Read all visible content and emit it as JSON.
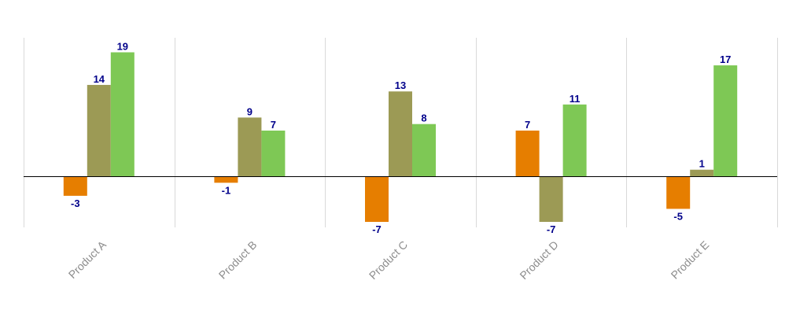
{
  "chart_data": {
    "type": "bar",
    "categories": [
      "Product A",
      "Product B",
      "Product C",
      "Product D",
      "Product E"
    ],
    "series": [
      {
        "values": [
          -3,
          -1,
          -7,
          7,
          -5
        ],
        "color": "#e67e00"
      },
      {
        "values": [
          14,
          9,
          13,
          -7,
          1
        ],
        "color": "#9c9a55"
      },
      {
        "values": [
          19,
          7,
          8,
          11,
          17
        ],
        "color": "#7ec855"
      }
    ],
    "title": "",
    "xlabel": "",
    "ylabel": "",
    "ylim": [
      -8,
      21
    ],
    "grid": {
      "vertical": true,
      "horizontal": false
    },
    "legend": "none",
    "label_color": "#00008b",
    "tick_label_color": "#8c8c8c",
    "tick_label_rotation": -45
  }
}
